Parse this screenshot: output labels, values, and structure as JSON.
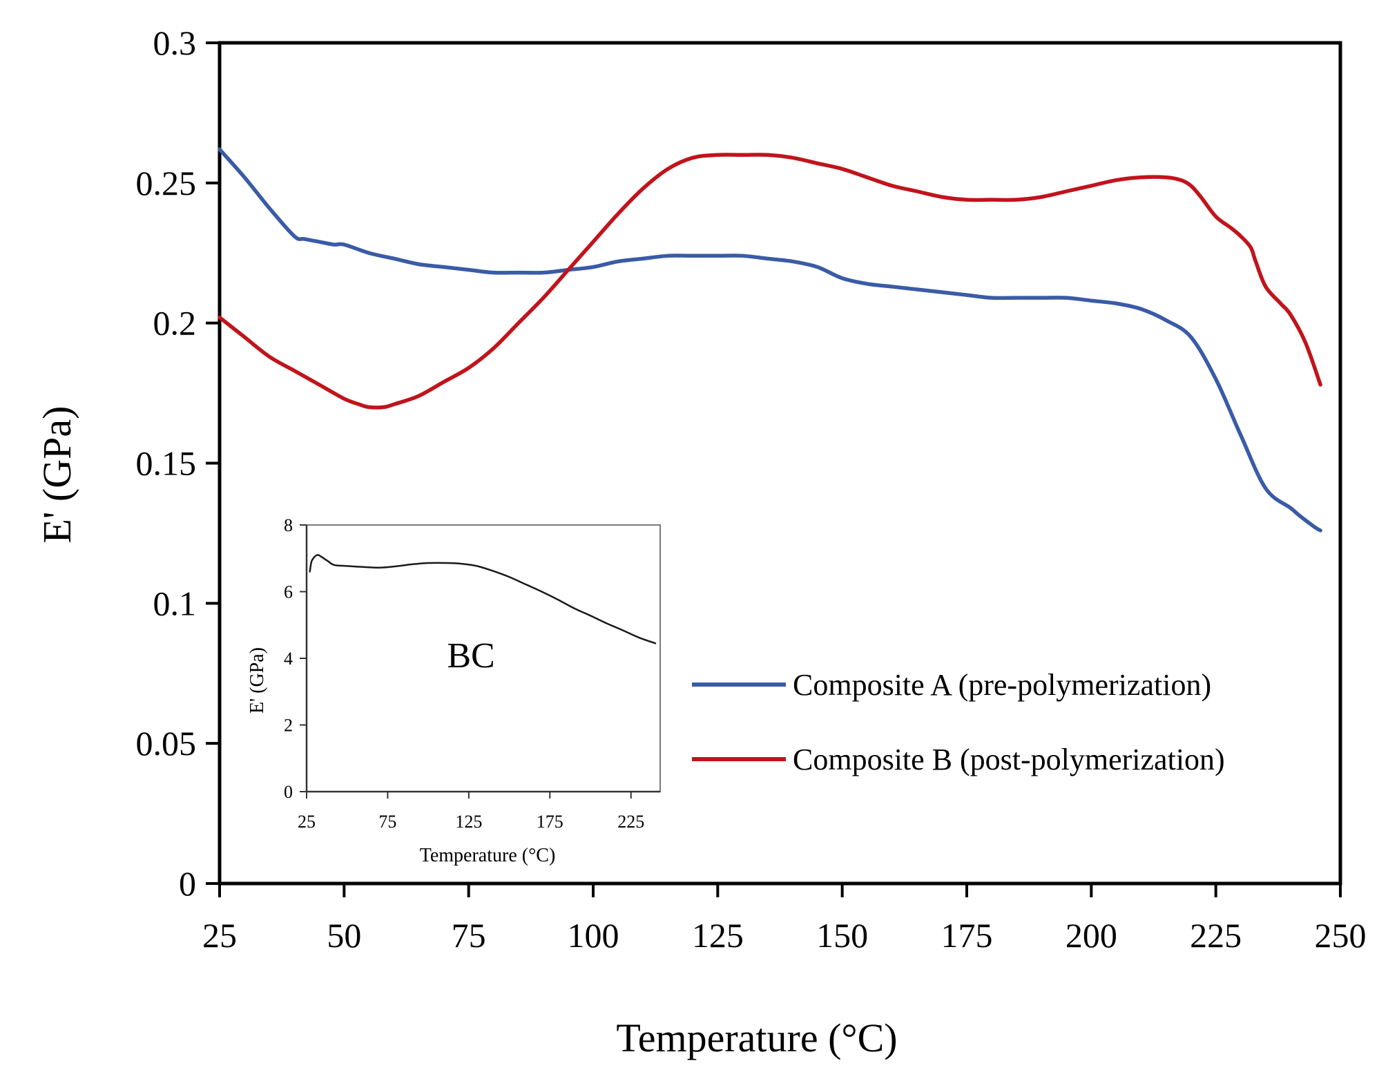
{
  "chart_data": [
    {
      "type": "line",
      "title": "",
      "xlabel": "Temperature (°C)",
      "ylabel": "E' (GPa)",
      "xlim": [
        25,
        250
      ],
      "ylim": [
        0,
        0.3
      ],
      "xticks": [
        25,
        50,
        75,
        100,
        125,
        150,
        175,
        200,
        225,
        250
      ],
      "xtick_labels": [
        "25",
        "50",
        "75",
        "100",
        "125",
        "150",
        "175",
        "200",
        "225",
        "250"
      ],
      "yticks": [
        0,
        0.05,
        0.1,
        0.15,
        0.2,
        0.25,
        0.3
      ],
      "ytick_labels": [
        "0",
        "0.05",
        "0.1",
        "0.15",
        "0.2",
        "0.25",
        "0.3"
      ],
      "grid": false,
      "legend_position": "right",
      "series": [
        {
          "name": "Composite A (pre-polymerization)",
          "color": "#3a5ba6",
          "x": [
            25,
            30,
            35,
            40,
            42,
            45,
            48,
            50,
            55,
            60,
            65,
            70,
            75,
            80,
            85,
            90,
            95,
            100,
            105,
            110,
            115,
            120,
            125,
            130,
            135,
            140,
            145,
            150,
            155,
            160,
            165,
            170,
            175,
            180,
            185,
            190,
            195,
            200,
            205,
            210,
            215,
            220,
            225,
            230,
            235,
            240,
            242,
            245,
            246
          ],
          "values": [
            0.262,
            0.252,
            0.241,
            0.231,
            0.23,
            0.229,
            0.228,
            0.228,
            0.225,
            0.223,
            0.221,
            0.22,
            0.219,
            0.218,
            0.218,
            0.218,
            0.219,
            0.22,
            0.222,
            0.223,
            0.224,
            0.224,
            0.224,
            0.224,
            0.223,
            0.222,
            0.22,
            0.216,
            0.214,
            0.213,
            0.212,
            0.211,
            0.21,
            0.209,
            0.209,
            0.209,
            0.209,
            0.208,
            0.207,
            0.205,
            0.201,
            0.195,
            0.18,
            0.16,
            0.141,
            0.134,
            0.131,
            0.127,
            0.126
          ]
        },
        {
          "name": "Composite B (post-polymerization)",
          "color": "#c0141c",
          "x": [
            25,
            30,
            35,
            40,
            45,
            50,
            53,
            55,
            58,
            60,
            65,
            70,
            75,
            80,
            85,
            90,
            95,
            100,
            105,
            110,
            115,
            120,
            125,
            130,
            135,
            140,
            145,
            150,
            155,
            160,
            165,
            170,
            175,
            180,
            185,
            190,
            195,
            200,
            205,
            210,
            215,
            218,
            220,
            222,
            225,
            228,
            230,
            232,
            233,
            235,
            238,
            240,
            243,
            246
          ],
          "values": [
            0.202,
            0.195,
            0.188,
            0.183,
            0.178,
            0.173,
            0.171,
            0.17,
            0.17,
            0.171,
            0.174,
            0.179,
            0.184,
            0.191,
            0.2,
            0.209,
            0.219,
            0.229,
            0.239,
            0.248,
            0.255,
            0.259,
            0.26,
            0.26,
            0.26,
            0.259,
            0.257,
            0.255,
            0.252,
            0.249,
            0.247,
            0.245,
            0.244,
            0.244,
            0.244,
            0.245,
            0.247,
            0.249,
            0.251,
            0.252,
            0.252,
            0.251,
            0.249,
            0.245,
            0.238,
            0.234,
            0.231,
            0.227,
            0.222,
            0.213,
            0.207,
            0.203,
            0.193,
            0.178
          ]
        }
      ]
    },
    {
      "type": "line",
      "title": "",
      "annotation": "BC",
      "xlabel": "Temperature (°C)",
      "ylabel": "E' (GPa)",
      "xlim": [
        25,
        243
      ],
      "ylim": [
        0,
        8
      ],
      "xticks": [
        25,
        75,
        125,
        175,
        225
      ],
      "xtick_labels": [
        "25",
        "75",
        "125",
        "175",
        "225"
      ],
      "yticks": [
        0,
        2,
        4,
        6,
        8
      ],
      "ytick_labels": [
        "0",
        "2",
        "4",
        "6",
        "8"
      ],
      "grid": false,
      "series": [
        {
          "name": "BC",
          "color": "#1a1a1a",
          "x": [
            27,
            28,
            30,
            32,
            34,
            38,
            42,
            50,
            60,
            70,
            80,
            90,
            100,
            110,
            120,
            130,
            140,
            150,
            160,
            170,
            180,
            190,
            200,
            210,
            220,
            230,
            240
          ],
          "values": [
            6.6,
            6.9,
            7.05,
            7.1,
            7.05,
            6.92,
            6.8,
            6.77,
            6.74,
            6.72,
            6.76,
            6.82,
            6.86,
            6.86,
            6.84,
            6.77,
            6.62,
            6.44,
            6.22,
            6.0,
            5.76,
            5.5,
            5.28,
            5.05,
            4.84,
            4.62,
            4.45
          ]
        }
      ]
    }
  ]
}
